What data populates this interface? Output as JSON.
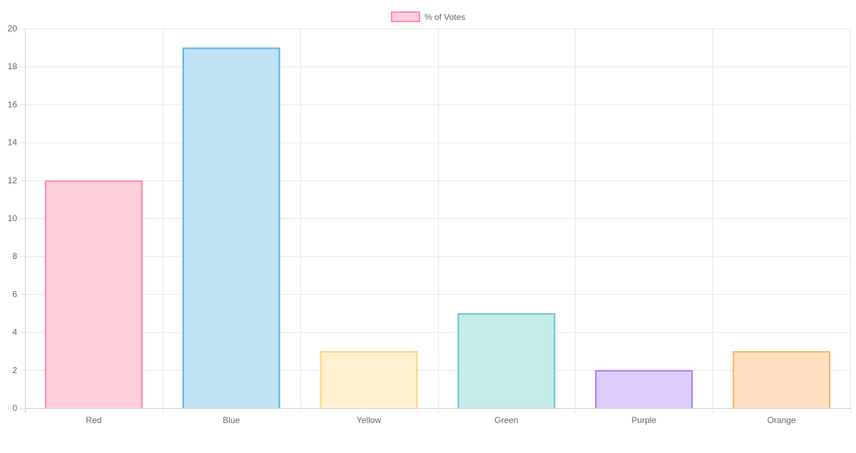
{
  "chart_data": {
    "type": "bar",
    "categories": [
      "Red",
      "Blue",
      "Yellow",
      "Green",
      "Purple",
      "Orange"
    ],
    "series": [
      {
        "name": "% of Votes",
        "values": [
          12,
          19,
          3,
          5,
          2,
          3
        ]
      }
    ],
    "title": "",
    "xlabel": "",
    "ylabel": "",
    "ylim": [
      0,
      20
    ],
    "ytick_step": 2,
    "grid": true,
    "legend_position": "top-center",
    "legend_colors": {
      "fill": "#ffcfdb",
      "stroke": "#ff8aa3"
    },
    "bar_colors": [
      {
        "fill": "#ffcfdb",
        "stroke": "#ff8aa3"
      },
      {
        "fill": "#bfe2f7",
        "stroke": "#59b3ea"
      },
      {
        "fill": "#fff0cf",
        "stroke": "#ffd27a"
      },
      {
        "fill": "#c4ece9",
        "stroke": "#6fc6c8"
      },
      {
        "fill": "#dfccff",
        "stroke": "#a37ef0"
      },
      {
        "fill": "#ffe0c2",
        "stroke": "#ffb35e"
      }
    ],
    "grid_color": "#e6e6e6",
    "axis_color": "#cfcfcf",
    "text_color": "#666666"
  }
}
